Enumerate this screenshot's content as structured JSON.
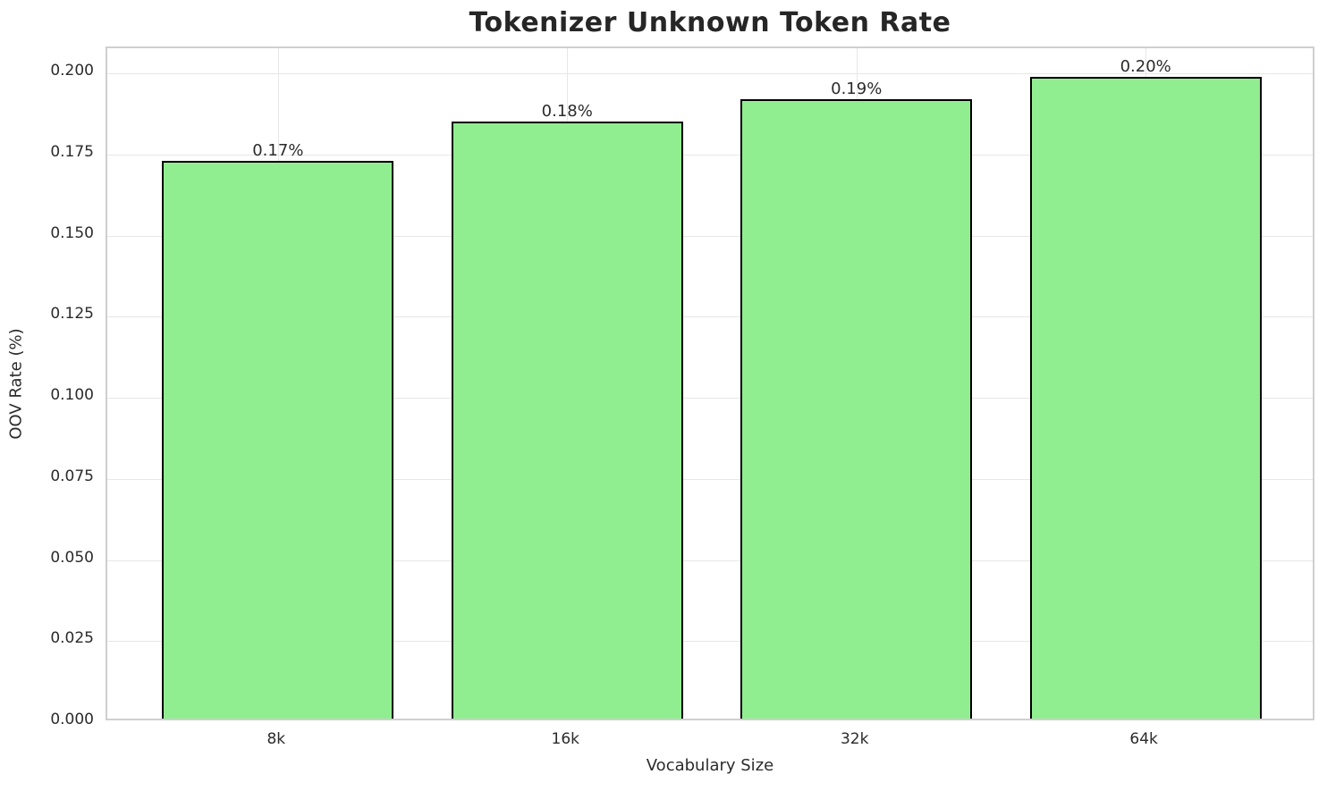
{
  "chart_data": {
    "type": "bar",
    "title": "Tokenizer Unknown Token Rate",
    "xlabel": "Vocabulary Size",
    "ylabel": "OOV Rate (%)",
    "categories": [
      "8k",
      "16k",
      "32k",
      "64k"
    ],
    "values": [
      0.172,
      0.184,
      0.191,
      0.198
    ],
    "bar_labels": [
      "0.17%",
      "0.18%",
      "0.19%",
      "0.20%"
    ],
    "x_positions": [
      0,
      1,
      2,
      3
    ],
    "bar_width": 0.8,
    "xlim": [
      -0.59,
      3.59
    ],
    "ylim": [
      0,
      0.2078
    ],
    "yticks": [
      0.0,
      0.025,
      0.05,
      0.075,
      0.1,
      0.125,
      0.15,
      0.175,
      0.2
    ],
    "ytick_labels": [
      "0.000",
      "0.025",
      "0.050",
      "0.075",
      "0.100",
      "0.125",
      "0.150",
      "0.175",
      "0.200"
    ],
    "grid": "both",
    "legend": "none",
    "colors": {
      "bar_fill": "#90EE90",
      "bar_edge": "#000000",
      "grid": "#e7e7e7",
      "spine": "#cfcfcf",
      "text": "#2b2b2b",
      "title": "#262626",
      "background": "#ffffff"
    }
  }
}
